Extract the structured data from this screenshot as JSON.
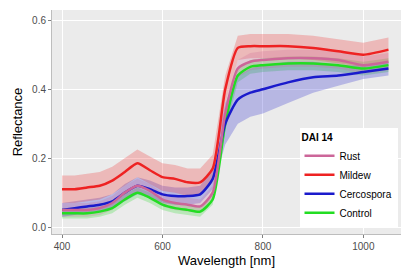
{
  "chart_data": {
    "type": "line",
    "x_label": "Wavelength [nm]",
    "y_label": "Reflectance",
    "legend_title": "DAI 14",
    "legend": "bottom right",
    "grid": true,
    "xlim": [
      380,
      1075
    ],
    "xticks": [
      400,
      600,
      800,
      1000
    ],
    "ylim": [
      -0.02,
      0.63
    ],
    "yticks": [
      {
        "value": 0,
        "label": "0.0"
      },
      {
        "value": 0.2,
        "label": "0.2"
      },
      {
        "value": 0.4,
        "label": "0.4"
      },
      {
        "value": 0.6,
        "label": "0.6"
      }
    ],
    "x": [
      400,
      425,
      450,
      475,
      500,
      525,
      550,
      575,
      600,
      625,
      650,
      675,
      700,
      725,
      750,
      775,
      800,
      850,
      900,
      950,
      1000,
      1050
    ],
    "series": [
      {
        "name": "Control",
        "color": "#22dd22",
        "values": [
          0.04,
          0.04,
          0.04,
          0.045,
          0.055,
          0.08,
          0.1,
          0.085,
          0.065,
          0.055,
          0.05,
          0.045,
          0.08,
          0.3,
          0.44,
          0.465,
          0.47,
          0.475,
          0.475,
          0.47,
          0.46,
          0.47
        ],
        "lower": [
          0.025,
          0.025,
          0.025,
          0.03,
          0.04,
          0.065,
          0.085,
          0.07,
          0.05,
          0.04,
          0.035,
          0.03,
          0.065,
          0.28,
          0.42,
          0.445,
          0.45,
          0.455,
          0.455,
          0.45,
          0.44,
          0.45
        ],
        "upper": [
          0.055,
          0.055,
          0.055,
          0.06,
          0.07,
          0.095,
          0.115,
          0.1,
          0.08,
          0.07,
          0.065,
          0.06,
          0.095,
          0.32,
          0.46,
          0.485,
          0.49,
          0.495,
          0.495,
          0.49,
          0.48,
          0.49
        ]
      },
      {
        "name": "Cercospora",
        "color": "#1a1acc",
        "values": [
          0.05,
          0.055,
          0.06,
          0.065,
          0.075,
          0.1,
          0.12,
          0.11,
          0.095,
          0.09,
          0.09,
          0.095,
          0.14,
          0.3,
          0.37,
          0.39,
          0.4,
          0.42,
          0.435,
          0.44,
          0.45,
          0.46
        ],
        "lower": [
          0.03,
          0.035,
          0.04,
          0.045,
          0.055,
          0.075,
          0.095,
          0.085,
          0.07,
          0.065,
          0.065,
          0.07,
          0.11,
          0.24,
          0.3,
          0.32,
          0.33,
          0.36,
          0.39,
          0.41,
          0.43,
          0.44
        ],
        "upper": [
          0.07,
          0.075,
          0.08,
          0.085,
          0.095,
          0.125,
          0.145,
          0.135,
          0.12,
          0.115,
          0.115,
          0.12,
          0.17,
          0.36,
          0.44,
          0.46,
          0.47,
          0.48,
          0.48,
          0.47,
          0.47,
          0.48
        ]
      },
      {
        "name": "Mildew",
        "color": "#ee2222",
        "values": [
          0.11,
          0.11,
          0.115,
          0.12,
          0.135,
          0.16,
          0.185,
          0.165,
          0.145,
          0.14,
          0.13,
          0.13,
          0.17,
          0.4,
          0.52,
          0.525,
          0.525,
          0.525,
          0.52,
          0.51,
          0.5,
          0.515
        ],
        "lower": [
          0.07,
          0.07,
          0.075,
          0.08,
          0.095,
          0.12,
          0.145,
          0.125,
          0.105,
          0.1,
          0.09,
          0.09,
          0.13,
          0.36,
          0.485,
          0.49,
          0.49,
          0.49,
          0.485,
          0.475,
          0.465,
          0.48
        ],
        "upper": [
          0.15,
          0.15,
          0.155,
          0.16,
          0.175,
          0.2,
          0.225,
          0.205,
          0.185,
          0.18,
          0.17,
          0.17,
          0.21,
          0.44,
          0.555,
          0.56,
          0.56,
          0.56,
          0.555,
          0.545,
          0.535,
          0.55
        ]
      },
      {
        "name": "Rust",
        "color": "#cc6699",
        "values": [
          0.05,
          0.05,
          0.05,
          0.055,
          0.07,
          0.1,
          0.12,
          0.105,
          0.08,
          0.07,
          0.065,
          0.06,
          0.1,
          0.33,
          0.46,
          0.48,
          0.485,
          0.49,
          0.49,
          0.485,
          0.47,
          0.48
        ],
        "lower": [
          0.03,
          0.03,
          0.03,
          0.035,
          0.05,
          0.08,
          0.1,
          0.085,
          0.06,
          0.05,
          0.045,
          0.04,
          0.08,
          0.3,
          0.435,
          0.455,
          0.46,
          0.465,
          0.465,
          0.46,
          0.445,
          0.455
        ],
        "upper": [
          0.07,
          0.07,
          0.07,
          0.075,
          0.09,
          0.12,
          0.14,
          0.125,
          0.1,
          0.09,
          0.085,
          0.08,
          0.12,
          0.36,
          0.485,
          0.505,
          0.51,
          0.515,
          0.515,
          0.51,
          0.495,
          0.505
        ]
      }
    ]
  }
}
